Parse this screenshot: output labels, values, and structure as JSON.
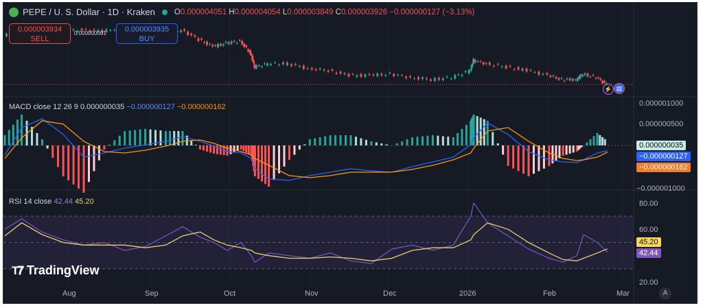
{
  "header": {
    "symbol": "PEPE / U. S. Dollar · 1D · Kraken",
    "open_label": "O",
    "open": "0.000004051",
    "high_label": "H",
    "high": "0.000004054",
    "low_label": "L",
    "low": "0.000003849",
    "close_label": "C",
    "close": "0.000003926",
    "change": "−0.000000127 (−3.13%)"
  },
  "trade": {
    "sell_price": "0.000003934",
    "sell_label": "SELL",
    "spread": "0.000000001",
    "buy_price": "0.000003935",
    "buy_label": "BUY"
  },
  "macd_legend": {
    "name": "MACD close 12 26 9",
    "hist": "0.000000035",
    "macd": "−0.000000127",
    "signal": "−0.000000162"
  },
  "rsi_legend": {
    "name": "RSI 14 close",
    "rsi": "42.44",
    "ma": "45.20"
  },
  "macd_axis": [
    "0.000001000",
    "0.000000500",
    "−0.000001000"
  ],
  "rsi_axis": [
    "80.00",
    "60.00",
    "20.00"
  ],
  "tags": {
    "hist": "0.000000035",
    "macd": "−0.000000127",
    "signal": "−0.000000162",
    "rsi_ma": "45.20",
    "rsi": "42.44"
  },
  "time_axis": [
    "Aug",
    "Sep",
    "Oct",
    "Nov",
    "Dec",
    "2026",
    "Feb",
    "Mar"
  ],
  "branding": "TradingView",
  "auto_label": "A",
  "colors": {
    "up": "#26a69a",
    "down": "#ef5350",
    "macd": "#2962ff",
    "signal": "#ff9800",
    "rsi": "#7e57c2",
    "rsi_ma": "#e8d36a"
  },
  "chart_data": {
    "type": "candlestick",
    "title": "PEPE / U. S. Dollar · 1D · Kraken",
    "price_close_x1e6": [
      9.18,
      9.93,
      10.31,
      9.56,
      9.93,
      9.71,
      10.16,
      9.56,
      9.18,
      9.93,
      8.81,
      8.06,
      8.43,
      8.66,
      7.31,
      5.81,
      6.18,
      6.18,
      5.66,
      5.43,
      4.91,
      4.91,
      5.06,
      4.68,
      4.46,
      4.68,
      5.43,
      6.56,
      6.18,
      5.81,
      5.43,
      4.91,
      4.46,
      4.46,
      5.06,
      4.68,
      3.93
    ],
    "macd": {
      "params": "12 26 9",
      "macd_x1e6": [
        -0.233,
        0.433,
        0.65,
        0.267,
        -0.283,
        -0.183,
        -0.067,
        0.017,
        0.1,
        0.217,
        0.1,
        -0.017,
        -0.15,
        -0.183,
        -0.317,
        -0.567,
        -0.817,
        -0.85,
        -0.733,
        -0.65,
        -0.567,
        -0.617,
        -0.65,
        -0.517,
        -0.4,
        -0.283,
        0.017,
        0.183,
        0.55,
        0.267,
        -0.15,
        -0.35,
        -0.4,
        -0.417,
        -0.35,
        -0.183,
        -0.127
      ],
      "signal_x1e6": [
        -0.317,
        0.183,
        0.6,
        0.517,
        0.1,
        -0.15,
        -0.183,
        -0.117,
        -0.017,
        0.1,
        0.133,
        0.05,
        -0.067,
        -0.15,
        -0.233,
        -0.317,
        -0.483,
        -0.733,
        -0.783,
        -0.733,
        -0.65,
        -0.65,
        -0.65,
        -0.583,
        -0.483,
        -0.35,
        -0.183,
        -0.067,
        0.35,
        0.433,
        0.1,
        -0.183,
        -0.317,
        -0.367,
        -0.35,
        -0.283,
        -0.162
      ],
      "ylim_x1e6": [
        -1.0,
        1.0
      ]
    },
    "rsi": {
      "period": 14,
      "rsi": [
        60,
        68,
        58,
        52,
        48,
        50,
        44,
        47,
        55,
        62,
        54,
        50,
        44,
        50,
        40,
        35,
        42,
        40,
        38,
        42,
        36,
        34,
        45,
        48,
        44,
        48,
        70,
        80,
        65,
        55,
        45,
        38,
        35,
        40,
        56,
        50,
        42.44
      ],
      "ma": [
        55,
        65,
        56,
        50,
        48,
        48,
        48,
        46,
        48,
        55,
        58,
        52,
        48,
        46,
        44,
        42,
        40,
        38,
        38,
        39,
        38,
        36,
        38,
        44,
        46,
        46,
        52,
        56,
        65,
        60,
        50,
        42,
        37,
        36,
        38,
        42,
        45.2
      ],
      "bands": [
        30,
        70
      ],
      "ylim": [
        20,
        80
      ]
    },
    "x_frac": [
      0,
      0.028,
      0.062,
      0.097,
      0.131,
      0.165,
      0.199,
      0.233,
      0.267,
      0.295,
      0.324,
      0.347,
      0.369,
      0.392,
      0.409,
      0.415,
      0.438,
      0.472,
      0.506,
      0.54,
      0.574,
      0.608,
      0.642,
      0.676,
      0.71,
      0.744,
      0.773,
      0.778,
      0.801,
      0.835,
      0.869,
      0.903,
      0.926,
      0.949,
      0.96,
      0.983,
      1.0
    ]
  }
}
